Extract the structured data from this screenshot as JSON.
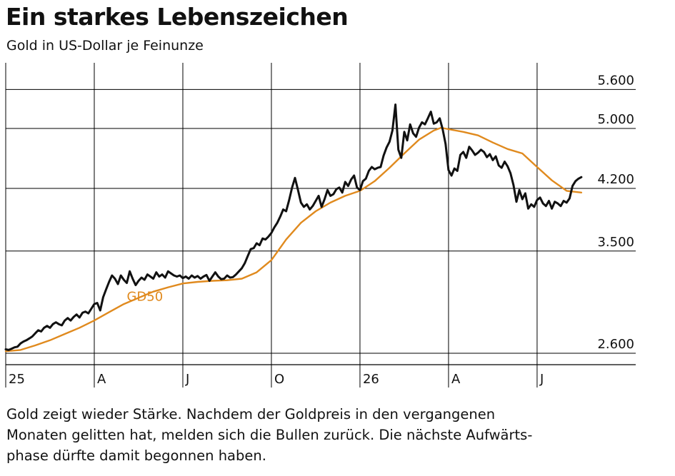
{
  "header": {
    "title": "Ein starkes Lebenszeichen",
    "subtitle": "Gold in US-Dollar je Feinunze"
  },
  "caption": {
    "lines": [
      "Gold zeigt wieder Stärke. Nachdem der Goldpreis in den vergangenen",
      "Monaten gelitten hat, melden sich die Bullen zurück. Die nächste Aufwärts-",
      "phase dürfte damit begonnen haben."
    ]
  },
  "colors": {
    "price": "#111111",
    "gd50": "#e08a1e",
    "grid": "#000000"
  },
  "chart_data": {
    "type": "line",
    "x_axis": {
      "unit": "month index from Jan 2025",
      "ticks": [
        {
          "x": 0,
          "label": "25"
        },
        {
          "x": 3,
          "label": "A"
        },
        {
          "x": 6,
          "label": "J"
        },
        {
          "x": 9,
          "label": "O"
        },
        {
          "x": 12,
          "label": "26"
        },
        {
          "x": 15,
          "label": "A"
        },
        {
          "x": 18,
          "label": "J"
        }
      ],
      "range": [
        0,
        21
      ]
    },
    "y_axis": {
      "scale": "log",
      "ticks": [
        5600,
        5000,
        4200,
        3500,
        2600
      ],
      "tick_labels": [
        "5.600",
        "5.000",
        "4.200",
        "3.500",
        "2.600"
      ],
      "range": [
        2520,
        6300
      ],
      "position": "right"
    },
    "grid": true,
    "series": [
      {
        "name": "",
        "color": "#111111",
        "points": [
          [
            0.0,
            2630
          ],
          [
            0.1,
            2625
          ],
          [
            0.2,
            2635
          ],
          [
            0.3,
            2645
          ],
          [
            0.4,
            2650
          ],
          [
            0.5,
            2675
          ],
          [
            0.6,
            2690
          ],
          [
            0.7,
            2700
          ],
          [
            0.8,
            2715
          ],
          [
            0.9,
            2730
          ],
          [
            1.0,
            2755
          ],
          [
            1.1,
            2780
          ],
          [
            1.2,
            2770
          ],
          [
            1.3,
            2800
          ],
          [
            1.4,
            2815
          ],
          [
            1.5,
            2800
          ],
          [
            1.6,
            2830
          ],
          [
            1.7,
            2845
          ],
          [
            1.8,
            2830
          ],
          [
            1.9,
            2820
          ],
          [
            2.0,
            2860
          ],
          [
            2.1,
            2880
          ],
          [
            2.2,
            2860
          ],
          [
            2.3,
            2890
          ],
          [
            2.4,
            2910
          ],
          [
            2.5,
            2885
          ],
          [
            2.6,
            2925
          ],
          [
            2.7,
            2935
          ],
          [
            2.8,
            2920
          ],
          [
            2.9,
            2960
          ],
          [
            3.0,
            3000
          ],
          [
            3.1,
            3010
          ],
          [
            3.2,
            2945
          ],
          [
            3.3,
            3060
          ],
          [
            3.4,
            3130
          ],
          [
            3.5,
            3200
          ],
          [
            3.6,
            3260
          ],
          [
            3.7,
            3230
          ],
          [
            3.8,
            3180
          ],
          [
            3.9,
            3260
          ],
          [
            4.0,
            3220
          ],
          [
            4.1,
            3190
          ],
          [
            4.2,
            3300
          ],
          [
            4.3,
            3230
          ],
          [
            4.4,
            3170
          ],
          [
            4.5,
            3210
          ],
          [
            4.6,
            3240
          ],
          [
            4.7,
            3220
          ],
          [
            4.8,
            3270
          ],
          [
            4.9,
            3250
          ],
          [
            5.0,
            3230
          ],
          [
            5.1,
            3290
          ],
          [
            5.2,
            3250
          ],
          [
            5.3,
            3270
          ],
          [
            5.4,
            3240
          ],
          [
            5.5,
            3300
          ],
          [
            5.6,
            3280
          ],
          [
            5.7,
            3260
          ],
          [
            5.8,
            3250
          ],
          [
            5.9,
            3260
          ],
          [
            6.0,
            3235
          ],
          [
            6.1,
            3250
          ],
          [
            6.2,
            3230
          ],
          [
            6.3,
            3260
          ],
          [
            6.4,
            3240
          ],
          [
            6.5,
            3255
          ],
          [
            6.6,
            3230
          ],
          [
            6.7,
            3250
          ],
          [
            6.8,
            3265
          ],
          [
            6.9,
            3210
          ],
          [
            7.0,
            3250
          ],
          [
            7.1,
            3290
          ],
          [
            7.2,
            3250
          ],
          [
            7.3,
            3225
          ],
          [
            7.4,
            3230
          ],
          [
            7.5,
            3260
          ],
          [
            7.6,
            3240
          ],
          [
            7.7,
            3245
          ],
          [
            7.8,
            3270
          ],
          [
            7.9,
            3300
          ],
          [
            8.0,
            3330
          ],
          [
            8.1,
            3380
          ],
          [
            8.2,
            3450
          ],
          [
            8.3,
            3520
          ],
          [
            8.4,
            3530
          ],
          [
            8.5,
            3580
          ],
          [
            8.6,
            3560
          ],
          [
            8.7,
            3630
          ],
          [
            8.8,
            3620
          ],
          [
            8.9,
            3650
          ],
          [
            9.0,
            3690
          ],
          [
            9.1,
            3750
          ],
          [
            9.2,
            3800
          ],
          [
            9.3,
            3870
          ],
          [
            9.4,
            3950
          ],
          [
            9.5,
            3930
          ],
          [
            9.6,
            4060
          ],
          [
            9.7,
            4210
          ],
          [
            9.8,
            4330
          ],
          [
            9.9,
            4180
          ],
          [
            10.0,
            4030
          ],
          [
            10.1,
            3980
          ],
          [
            10.2,
            4010
          ],
          [
            10.3,
            3950
          ],
          [
            10.4,
            3990
          ],
          [
            10.5,
            4050
          ],
          [
            10.6,
            4110
          ],
          [
            10.7,
            3980
          ],
          [
            10.8,
            4070
          ],
          [
            10.9,
            4180
          ],
          [
            11.0,
            4110
          ],
          [
            11.1,
            4130
          ],
          [
            11.2,
            4190
          ],
          [
            11.3,
            4210
          ],
          [
            11.4,
            4150
          ],
          [
            11.5,
            4280
          ],
          [
            11.6,
            4230
          ],
          [
            11.7,
            4310
          ],
          [
            11.8,
            4360
          ],
          [
            11.9,
            4210
          ],
          [
            12.0,
            4180
          ],
          [
            12.1,
            4290
          ],
          [
            12.2,
            4320
          ],
          [
            12.3,
            4420
          ],
          [
            12.4,
            4470
          ],
          [
            12.5,
            4440
          ],
          [
            12.6,
            4460
          ],
          [
            12.7,
            4470
          ],
          [
            12.8,
            4620
          ],
          [
            12.9,
            4730
          ],
          [
            13.0,
            4810
          ],
          [
            13.1,
            4970
          ],
          [
            13.2,
            5360
          ],
          [
            13.3,
            4700
          ],
          [
            13.4,
            4590
          ],
          [
            13.5,
            4950
          ],
          [
            13.6,
            4830
          ],
          [
            13.7,
            5060
          ],
          [
            13.8,
            4930
          ],
          [
            13.9,
            4880
          ],
          [
            14.0,
            5010
          ],
          [
            14.1,
            5090
          ],
          [
            14.2,
            5060
          ],
          [
            14.3,
            5150
          ],
          [
            14.4,
            5250
          ],
          [
            14.5,
            5070
          ],
          [
            14.6,
            5090
          ],
          [
            14.7,
            5150
          ],
          [
            14.8,
            4990
          ],
          [
            14.9,
            4780
          ],
          [
            15.0,
            4430
          ],
          [
            15.1,
            4360
          ],
          [
            15.2,
            4450
          ],
          [
            15.3,
            4420
          ],
          [
            15.4,
            4630
          ],
          [
            15.5,
            4670
          ],
          [
            15.6,
            4590
          ],
          [
            15.7,
            4740
          ],
          [
            15.8,
            4690
          ],
          [
            15.9,
            4630
          ],
          [
            16.0,
            4660
          ],
          [
            16.1,
            4700
          ],
          [
            16.2,
            4670
          ],
          [
            16.3,
            4600
          ],
          [
            16.4,
            4640
          ],
          [
            16.5,
            4560
          ],
          [
            16.6,
            4610
          ],
          [
            16.7,
            4490
          ],
          [
            16.8,
            4460
          ],
          [
            16.9,
            4540
          ],
          [
            17.0,
            4480
          ],
          [
            17.1,
            4390
          ],
          [
            17.2,
            4240
          ],
          [
            17.3,
            4040
          ],
          [
            17.4,
            4180
          ],
          [
            17.5,
            4070
          ],
          [
            17.6,
            4140
          ],
          [
            17.7,
            3960
          ],
          [
            17.8,
            4010
          ],
          [
            17.9,
            3980
          ],
          [
            18.0,
            4060
          ],
          [
            18.1,
            4090
          ],
          [
            18.2,
            4020
          ],
          [
            18.3,
            3990
          ],
          [
            18.4,
            4050
          ],
          [
            18.5,
            3960
          ],
          [
            18.6,
            4040
          ],
          [
            18.7,
            4020
          ],
          [
            18.8,
            3990
          ],
          [
            18.9,
            4050
          ],
          [
            19.0,
            4030
          ],
          [
            19.1,
            4080
          ],
          [
            19.2,
            4230
          ],
          [
            19.3,
            4290
          ],
          [
            19.4,
            4320
          ],
          [
            19.5,
            4340
          ]
        ]
      },
      {
        "name": "GD50",
        "color": "#e08a1e",
        "points": [
          [
            0.0,
            2615
          ],
          [
            0.5,
            2625
          ],
          [
            1.0,
            2660
          ],
          [
            1.5,
            2700
          ],
          [
            2.0,
            2750
          ],
          [
            2.5,
            2800
          ],
          [
            3.0,
            2860
          ],
          [
            3.5,
            2930
          ],
          [
            4.0,
            3000
          ],
          [
            4.5,
            3055
          ],
          [
            5.0,
            3110
          ],
          [
            5.5,
            3150
          ],
          [
            6.0,
            3185
          ],
          [
            6.5,
            3200
          ],
          [
            7.0,
            3210
          ],
          [
            7.5,
            3215
          ],
          [
            8.0,
            3230
          ],
          [
            8.5,
            3290
          ],
          [
            9.0,
            3410
          ],
          [
            9.5,
            3620
          ],
          [
            10.0,
            3800
          ],
          [
            10.5,
            3930
          ],
          [
            11.0,
            4030
          ],
          [
            11.5,
            4110
          ],
          [
            12.0,
            4170
          ],
          [
            12.5,
            4290
          ],
          [
            13.0,
            4460
          ],
          [
            13.5,
            4650
          ],
          [
            14.0,
            4840
          ],
          [
            14.5,
            4970
          ],
          [
            14.75,
            5010
          ],
          [
            15.0,
            4990
          ],
          [
            15.5,
            4950
          ],
          [
            16.0,
            4900
          ],
          [
            16.5,
            4800
          ],
          [
            17.0,
            4710
          ],
          [
            17.5,
            4650
          ],
          [
            18.0,
            4470
          ],
          [
            18.5,
            4300
          ],
          [
            19.0,
            4170
          ],
          [
            19.5,
            4150
          ]
        ]
      }
    ],
    "annotations": [
      {
        "text": "GD50",
        "x": 4.1,
        "y": 3030,
        "color": "#e08a1e"
      }
    ]
  }
}
